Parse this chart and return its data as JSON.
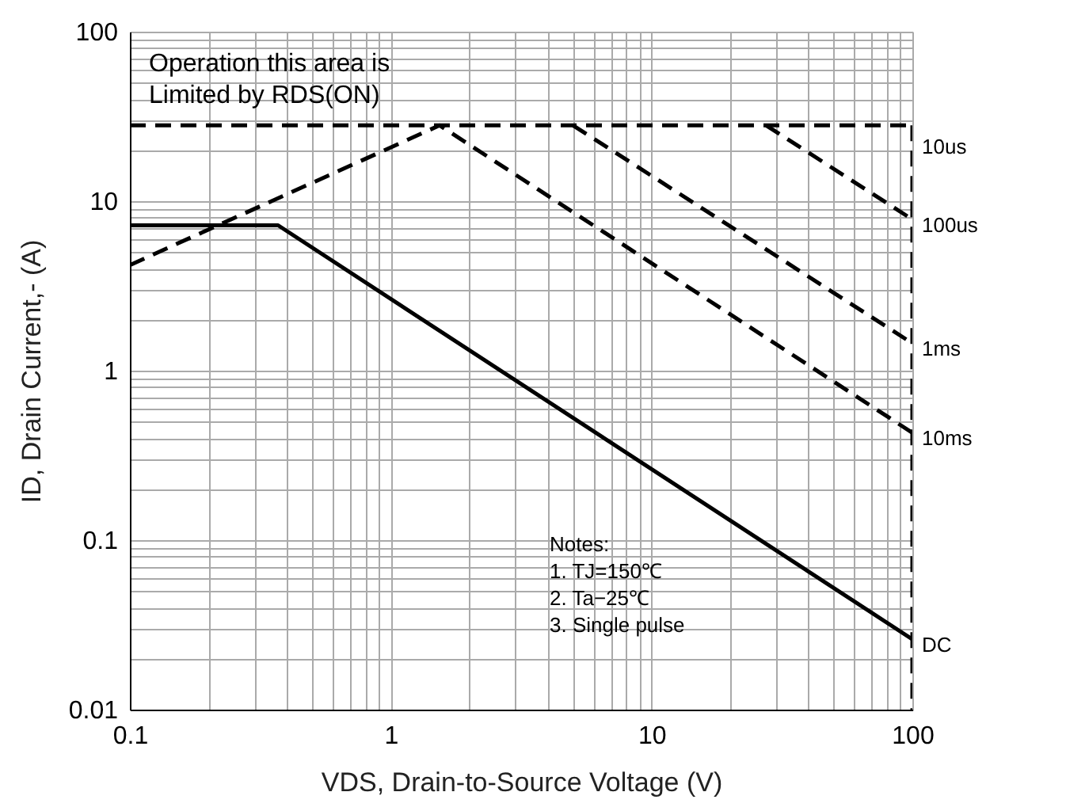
{
  "chart_data": {
    "type": "line",
    "xlabel": "VDS, Drain-to-Source Voltage (V)",
    "ylabel": "ID, Drain Current,- (A)",
    "annotations": [
      "Operation this area is\nLimited by RDS(ON)",
      "Notes:\n1. TJ=150℃\n2. Ta−25℃\n3. Single pulse"
    ],
    "log": "xy",
    "grid": true,
    "marker": "none",
    "xlim": [
      0.1,
      100
    ],
    "ylim": [
      0.01,
      100
    ],
    "xticks": [
      0.1,
      {
        "value": 0.2,
        "label": null
      },
      {
        "value": 0.3,
        "label": null
      },
      {
        "value": 0.4,
        "label": null
      },
      {
        "value": 0.5,
        "label": null
      },
      {
        "value": 0.6,
        "label": null
      },
      {
        "value": 0.7,
        "label": null
      },
      {
        "value": 0.8,
        "label": null
      },
      {
        "value": 0.9,
        "label": null
      },
      1,
      {
        "value": 2,
        "label": null
      },
      {
        "value": 3,
        "label": null
      },
      {
        "value": 4,
        "label": null
      },
      {
        "value": 5,
        "label": null
      },
      {
        "value": 6,
        "label": null
      },
      {
        "value": 7,
        "label": null
      },
      {
        "value": 8,
        "label": null
      },
      {
        "value": 9,
        "label": null
      },
      10,
      {
        "value": 20,
        "label": null
      },
      {
        "value": 30,
        "label": null
      },
      {
        "value": 40,
        "label": null
      },
      {
        "value": 50,
        "label": null
      },
      {
        "value": 60,
        "label": null
      },
      {
        "value": 70,
        "label": null
      },
      {
        "value": 80,
        "label": null
      },
      {
        "value": 90,
        "label": null
      },
      100
    ],
    "yticks": [
      0.01,
      {
        "value": 0.02,
        "label": null
      },
      {
        "value": 0.03,
        "label": null
      },
      {
        "value": 0.04,
        "label": null
      },
      {
        "value": 0.05,
        "label": null
      },
      {
        "value": 0.06,
        "label": null
      },
      {
        "value": 0.07,
        "label": null
      },
      {
        "value": 0.08,
        "label": null
      },
      {
        "value": 0.09,
        "label": null
      },
      0.1,
      {
        "value": 0.2,
        "label": null
      },
      {
        "value": 0.3,
        "label": null
      },
      {
        "value": 0.4,
        "label": null
      },
      {
        "value": 0.5,
        "label": null
      },
      {
        "value": 0.6,
        "label": null
      },
      {
        "value": 0.7,
        "label": null
      },
      {
        "value": 0.8,
        "label": null
      },
      {
        "value": 0.9,
        "label": null
      },
      1,
      {
        "value": 2,
        "label": null
      },
      {
        "value": 3,
        "label": null
      },
      {
        "value": 4,
        "label": null
      },
      {
        "value": 5,
        "label": null
      },
      {
        "value": 6,
        "label": null
      },
      {
        "value": 7,
        "label": null
      },
      {
        "value": 8,
        "label": null
      },
      {
        "value": 9,
        "label": null
      },
      10,
      {
        "value": 20,
        "label": null
      },
      {
        "value": 30,
        "label": null
      },
      {
        "value": 40,
        "label": null
      },
      {
        "value": 50,
        "label": null
      },
      {
        "value": 60,
        "label": null
      },
      {
        "value": 70,
        "label": null
      },
      {
        "value": 80,
        "label": null
      },
      {
        "value": 90,
        "label": null
      },
      100
    ],
    "series": [
      {
        "name": "10us",
        "color": "#000000",
        "line_style": "dashed",
        "x": [
          0.1,
          100
        ],
        "values": [
          28,
          28
        ]
      },
      {
        "name": "100us",
        "color": "#000000",
        "line_style": "dashed",
        "x": [
          27.5,
          100
        ],
        "values": [
          28,
          7.8
        ]
      },
      {
        "name": "1ms",
        "color": "#000000",
        "line_style": "dashed",
        "x": [
          5,
          100
        ],
        "values": [
          28,
          1.45
        ]
      },
      {
        "name": "10ms",
        "color": "#000000",
        "line_style": "dashed",
        "x": [
          0.1,
          1.54,
          100
        ],
        "values": [
          4.2,
          28,
          0.43
        ]
      },
      {
        "name": "DC",
        "color": "#000000",
        "line_style": "solid",
        "x": [
          0.1,
          0.37,
          100
        ],
        "values": [
          7.2,
          7.2,
          0.026
        ]
      },
      {
        "color": "#000000",
        "line_style": "dashed",
        "x": [
          100,
          100
        ],
        "values": [
          28,
          0.01
        ]
      }
    ]
  }
}
